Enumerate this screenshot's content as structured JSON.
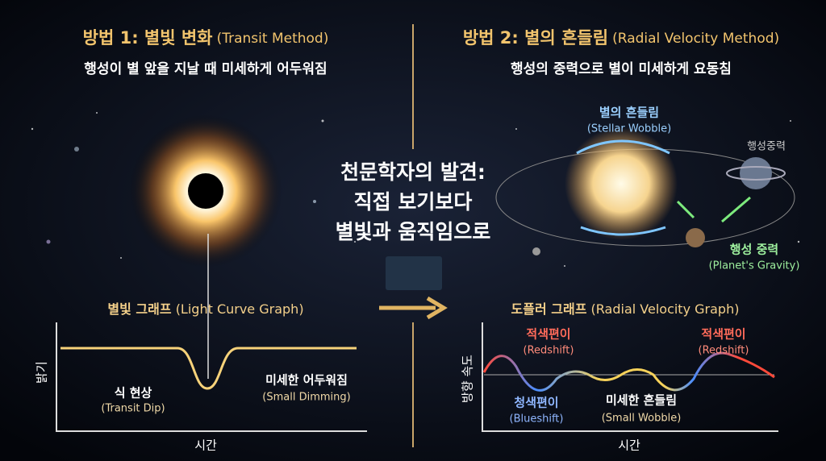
{
  "left": {
    "title": "방법 1: 별빛 변화",
    "title_en": "(Transit Method)",
    "subtitle": "행성이 별 앞을 지날 때 미세하게 어두워짐",
    "graph": {
      "title": "별빛 그래프",
      "title_en": "(Light Curve Graph)",
      "y_label": "밝기",
      "x_label": "시간",
      "annotations": [
        {
          "label": "식 현상",
          "label_en": "(Transit Dip)"
        },
        {
          "label": "미세한 어두워짐",
          "label_en": "(Small Dimming)"
        }
      ]
    }
  },
  "center": {
    "lines": [
      "천문학자의 발견:",
      "직접 보기보다",
      "별빛과 움직임으로"
    ]
  },
  "right": {
    "title": "방법 2: 별의 흔들림",
    "title_en": "(Radial Velocity Method)",
    "subtitle": "행성의 중력으로 별이 미세하게 요동침",
    "diagram": {
      "wobble": {
        "label": "별의 흔들림",
        "label_en": "(Stellar Wobble)"
      },
      "planet_label": "행성중력",
      "gravity": {
        "label": "행성 중력",
        "label_en": "(Planet's Gravity)"
      }
    },
    "graph": {
      "title": "도플러 그래프",
      "title_en": "(Radial Velocity Graph)",
      "y_label": "방향 속도",
      "x_label": "시간",
      "annotations": [
        {
          "label": "적색편이",
          "label_en": "(Redshift)"
        },
        {
          "label": "적색편이",
          "label_en": "(Redshift)"
        },
        {
          "label": "청색편이",
          "label_en": "(Blueshift)"
        },
        {
          "label": "미세한 흔들림",
          "label_en": "(Small Wobble)"
        }
      ]
    }
  }
}
